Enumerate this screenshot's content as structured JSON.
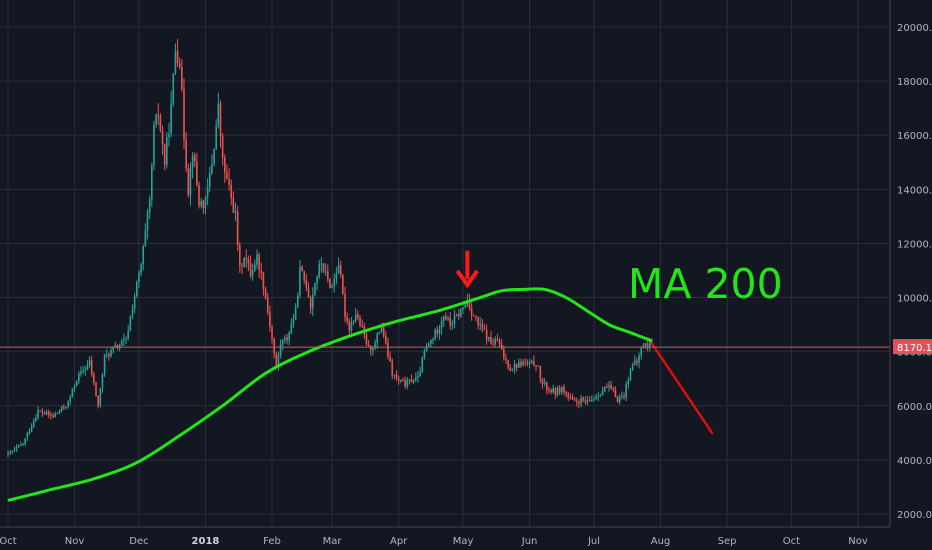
{
  "chart_data": {
    "type": "candlestick",
    "title": "",
    "ylabel": "",
    "xlabel": "",
    "ylim": [
      1500,
      20900
    ],
    "y_ticks": [
      "2000.0",
      "4000.0",
      "6000.0",
      "8000.0",
      "10000.0",
      "12000.0",
      "14000.0",
      "16000.0",
      "18000.0",
      "20000.0"
    ],
    "x_ticks": [
      {
        "label": "Oct",
        "day": 0,
        "bold": false
      },
      {
        "label": "Nov",
        "day": 31,
        "bold": false
      },
      {
        "label": "Dec",
        "day": 61,
        "bold": false
      },
      {
        "label": "2018",
        "day": 92,
        "bold": true
      },
      {
        "label": "Feb",
        "day": 123,
        "bold": false
      },
      {
        "label": "Mar",
        "day": 151,
        "bold": false
      },
      {
        "label": "Apr",
        "day": 182,
        "bold": false
      },
      {
        "label": "May",
        "day": 212,
        "bold": false
      },
      {
        "label": "Jun",
        "day": 243,
        "bold": false
      },
      {
        "label": "Jul",
        "day": 273,
        "bold": false
      },
      {
        "label": "Aug",
        "day": 304,
        "bold": false
      },
      {
        "label": "Sep",
        "day": 335,
        "bold": false
      },
      {
        "label": "Oct",
        "day": 365,
        "bold": false
      },
      {
        "label": "Nov",
        "day": 396,
        "bold": false
      }
    ],
    "price_path": [
      [
        0,
        4200
      ],
      [
        7,
        4600
      ],
      [
        14,
        5800
      ],
      [
        21,
        5600
      ],
      [
        28,
        6100
      ],
      [
        32,
        7000
      ],
      [
        38,
        7600
      ],
      [
        42,
        6000
      ],
      [
        45,
        7800
      ],
      [
        51,
        8200
      ],
      [
        55,
        8400
      ],
      [
        58,
        9700
      ],
      [
        62,
        11200
      ],
      [
        66,
        13500
      ],
      [
        68,
        16200
      ],
      [
        70,
        16800
      ],
      [
        73,
        15000
      ],
      [
        76,
        17000
      ],
      [
        78,
        19200
      ],
      [
        80,
        18800
      ],
      [
        82,
        16000
      ],
      [
        84,
        14000
      ],
      [
        86,
        15500
      ],
      [
        89,
        13500
      ],
      [
        92,
        13500
      ],
      [
        95,
        15000
      ],
      [
        98,
        17000
      ],
      [
        100,
        15000
      ],
      [
        103,
        14000
      ],
      [
        106,
        13000
      ],
      [
        108,
        11000
      ],
      [
        110,
        11600
      ],
      [
        113,
        10900
      ],
      [
        116,
        11500
      ],
      [
        119,
        10500
      ],
      [
        122,
        9000
      ],
      [
        125,
        7400
      ],
      [
        127,
        8300
      ],
      [
        130,
        8500
      ],
      [
        134,
        9500
      ],
      [
        136,
        11000
      ],
      [
        139,
        10500
      ],
      [
        141,
        9700
      ],
      [
        143,
        10600
      ],
      [
        146,
        11300
      ],
      [
        149,
        10600
      ],
      [
        151,
        10400
      ],
      [
        154,
        11300
      ],
      [
        157,
        9400
      ],
      [
        159,
        8900
      ],
      [
        162,
        9400
      ],
      [
        165,
        8800
      ],
      [
        168,
        8100
      ],
      [
        171,
        8300
      ],
      [
        174,
        9000
      ],
      [
        176,
        8200
      ],
      [
        179,
        7200
      ],
      [
        182,
        6900
      ],
      [
        185,
        6800
      ],
      [
        188,
        6950
      ],
      [
        191,
        7000
      ],
      [
        194,
        8000
      ],
      [
        197,
        8400
      ],
      [
        200,
        8800
      ],
      [
        203,
        9400
      ],
      [
        206,
        9000
      ],
      [
        209,
        9300
      ],
      [
        212,
        9600
      ],
      [
        214,
        9900
      ],
      [
        216,
        9500
      ],
      [
        219,
        9000
      ],
      [
        222,
        8700
      ],
      [
        225,
        8300
      ],
      [
        228,
        8400
      ],
      [
        231,
        7800
      ],
      [
        234,
        7400
      ],
      [
        237,
        7500
      ],
      [
        240,
        7600
      ],
      [
        243,
        7500
      ],
      [
        246,
        7600
      ],
      [
        249,
        6800
      ],
      [
        252,
        6600
      ],
      [
        255,
        6500
      ],
      [
        258,
        6650
      ],
      [
        261,
        6300
      ],
      [
        264,
        6100
      ],
      [
        267,
        6200
      ],
      [
        270,
        6100
      ],
      [
        273,
        6300
      ],
      [
        276,
        6500
      ],
      [
        279,
        6700
      ],
      [
        281,
        6600
      ],
      [
        284,
        6250
      ],
      [
        287,
        6400
      ],
      [
        290,
        7400
      ],
      [
        293,
        7600
      ],
      [
        296,
        8300
      ],
      [
        298,
        8200
      ],
      [
        300,
        8400
      ]
    ],
    "candle_count": 301,
    "series": [
      {
        "name": "MA 200",
        "color": "#22e51a",
        "x": [
          0,
          20,
          40,
          60,
          80,
          100,
          120,
          140,
          160,
          180,
          200,
          220,
          230,
          240,
          250,
          260,
          270,
          280,
          290,
          300
        ],
        "values": [
          2500,
          2900,
          3300,
          3900,
          4900,
          6000,
          7200,
          8000,
          8600,
          9100,
          9500,
          10000,
          10250,
          10300,
          10300,
          10000,
          9500,
          9000,
          8700,
          8400
        ]
      },
      {
        "name": "projection",
        "color": "#e00d0d",
        "x": [
          300,
          328
        ],
        "values": [
          8300,
          5000
        ]
      }
    ],
    "price_line": {
      "value": 8170.1,
      "label": "8170.1",
      "color": "#e0525c"
    },
    "annotations": [
      {
        "type": "arrow",
        "day": 214,
        "color": "#ff1a1a",
        "direction": "down",
        "points_to": 10100
      }
    ],
    "colors": {
      "up": "#26a69a",
      "down": "#ef5350",
      "grid": "#2a2e39",
      "background": "#131722"
    }
  },
  "labels": {
    "ma_label": "MA 200",
    "price_tag": "8170.1"
  }
}
